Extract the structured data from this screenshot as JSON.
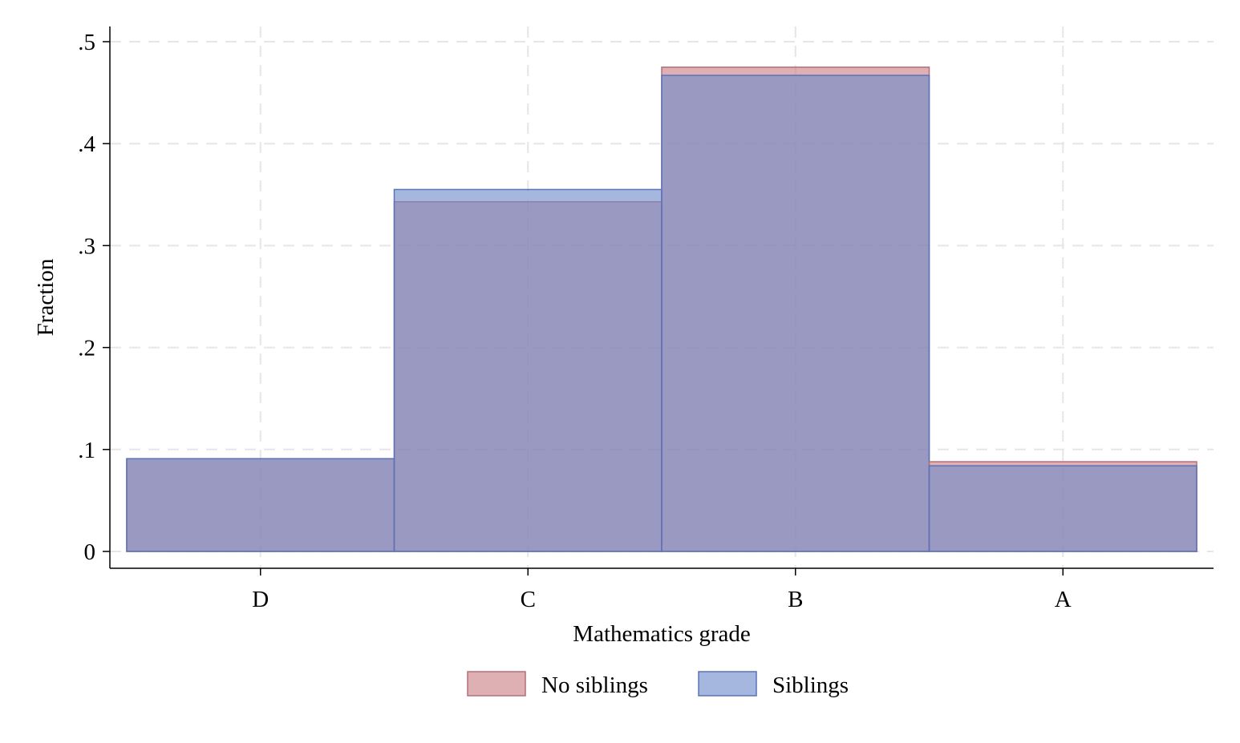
{
  "chart_data": {
    "type": "bar",
    "categories": [
      "D",
      "C",
      "B",
      "A"
    ],
    "series": [
      {
        "name": "No siblings",
        "values": [
          0.091,
          0.343,
          0.475,
          0.088
        ],
        "fill": "#c97f86",
        "stroke": "#b56f77"
      },
      {
        "name": "Siblings",
        "values": [
          0.091,
          0.355,
          0.467,
          0.084
        ],
        "fill": "#6f8bcc",
        "stroke": "#5a72b8"
      }
    ],
    "overlap_color": "#8f8aab",
    "xlabel": "Mathematics grade",
    "ylabel": "Fraction",
    "ylim": [
      0,
      0.5
    ],
    "yticks": [
      0,
      0.1,
      0.2,
      0.3,
      0.4,
      0.5
    ],
    "ytick_labels": [
      "0",
      ".1",
      ".2",
      ".3",
      ".4",
      ".5"
    ],
    "grid": true,
    "legend_position": "bottom"
  }
}
